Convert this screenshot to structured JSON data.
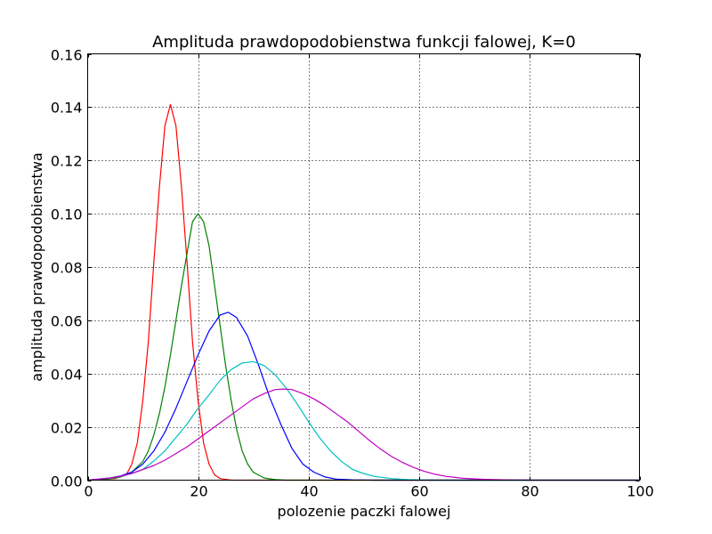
{
  "chart_data": {
    "type": "line",
    "title": "Amplituda prawdopodobienstwa funkcji falowej, K=0",
    "xlabel": "polozenie paczki falowej",
    "ylabel": "amplituda prawdopodobienstwa",
    "xlim": [
      0,
      100
    ],
    "ylim": [
      0,
      0.16
    ],
    "grid": true,
    "x_ticks": [
      0,
      20,
      40,
      60,
      80,
      100
    ],
    "x_tick_labels": [
      "0",
      "20",
      "40",
      "60",
      "80",
      "100"
    ],
    "y_ticks": [
      0,
      0.02,
      0.04,
      0.06,
      0.08,
      0.1,
      0.12,
      0.14,
      0.16
    ],
    "y_tick_labels": [
      "0.00",
      "0.02",
      "0.04",
      "0.06",
      "0.08",
      "0.10",
      "0.12",
      "0.14",
      "0.16"
    ],
    "series": [
      {
        "color": "#ff0000",
        "points": [
          [
            0,
            0
          ],
          [
            5,
            0.0006
          ],
          [
            7,
            0.002
          ],
          [
            8,
            0.006
          ],
          [
            9,
            0.014
          ],
          [
            10,
            0.03
          ],
          [
            11,
            0.052
          ],
          [
            12,
            0.082
          ],
          [
            13,
            0.11
          ],
          [
            14,
            0.133
          ],
          [
            15,
            0.141
          ],
          [
            16,
            0.133
          ],
          [
            17,
            0.11
          ],
          [
            18,
            0.082
          ],
          [
            19,
            0.052
          ],
          [
            20,
            0.03
          ],
          [
            21,
            0.014
          ],
          [
            22,
            0.006
          ],
          [
            23,
            0.002
          ],
          [
            24,
            0.0006
          ],
          [
            26,
            0
          ],
          [
            100,
            0
          ]
        ]
      },
      {
        "color": "#008000",
        "points": [
          [
            0,
            0
          ],
          [
            4,
            0.0005
          ],
          [
            6,
            0.0012
          ],
          [
            8,
            0.003
          ],
          [
            10,
            0.007
          ],
          [
            11,
            0.011
          ],
          [
            12,
            0.017
          ],
          [
            13,
            0.025
          ],
          [
            14,
            0.035
          ],
          [
            15,
            0.047
          ],
          [
            16,
            0.06
          ],
          [
            17,
            0.073
          ],
          [
            18,
            0.085
          ],
          [
            19,
            0.097
          ],
          [
            20,
            0.1
          ],
          [
            21,
            0.097
          ],
          [
            22,
            0.088
          ],
          [
            23,
            0.073
          ],
          [
            24,
            0.058
          ],
          [
            25,
            0.043
          ],
          [
            26,
            0.03
          ],
          [
            27,
            0.019
          ],
          [
            28,
            0.011
          ],
          [
            29,
            0.006
          ],
          [
            30,
            0.003
          ],
          [
            32,
            0.0008
          ],
          [
            34,
            0.0002
          ],
          [
            36,
            0
          ],
          [
            100,
            0
          ]
        ]
      },
      {
        "color": "#0000ff",
        "points": [
          [
            0,
            0
          ],
          [
            4,
            0.0008
          ],
          [
            6,
            0.0016
          ],
          [
            8,
            0.003
          ],
          [
            10,
            0.006
          ],
          [
            12,
            0.011
          ],
          [
            14,
            0.018
          ],
          [
            16,
            0.027
          ],
          [
            18,
            0.037
          ],
          [
            20,
            0.047
          ],
          [
            22,
            0.056
          ],
          [
            24,
            0.062
          ],
          [
            25.5,
            0.063
          ],
          [
            27,
            0.061
          ],
          [
            29,
            0.054
          ],
          [
            31,
            0.043
          ],
          [
            33,
            0.031
          ],
          [
            35,
            0.021
          ],
          [
            37,
            0.012
          ],
          [
            39,
            0.006
          ],
          [
            41,
            0.003
          ],
          [
            43,
            0.0012
          ],
          [
            45,
            0.0004
          ],
          [
            48,
            0.0001
          ],
          [
            52,
            0
          ],
          [
            100,
            0
          ]
        ]
      },
      {
        "color": "#00bfbf",
        "points": [
          [
            0,
            0
          ],
          [
            4,
            0.0008
          ],
          [
            6,
            0.0014
          ],
          [
            8,
            0.0025
          ],
          [
            10,
            0.004
          ],
          [
            12,
            0.0072
          ],
          [
            14,
            0.011
          ],
          [
            16,
            0.016
          ],
          [
            18,
            0.021
          ],
          [
            20,
            0.027
          ],
          [
            22,
            0.032
          ],
          [
            24,
            0.0375
          ],
          [
            26,
            0.0415
          ],
          [
            28,
            0.044
          ],
          [
            30,
            0.0445
          ],
          [
            32,
            0.043
          ],
          [
            34,
            0.0395
          ],
          [
            36,
            0.0345
          ],
          [
            38,
            0.0285
          ],
          [
            40,
            0.022
          ],
          [
            42,
            0.016
          ],
          [
            44,
            0.011
          ],
          [
            46,
            0.007
          ],
          [
            48,
            0.004
          ],
          [
            50,
            0.0025
          ],
          [
            52,
            0.0014
          ],
          [
            55,
            0.0006
          ],
          [
            58,
            0.0002
          ],
          [
            62,
            0
          ],
          [
            100,
            0
          ]
        ]
      },
      {
        "color": "#bf00bf",
        "points": [
          [
            0,
            0
          ],
          [
            4,
            0.0008
          ],
          [
            6,
            0.0015
          ],
          [
            8,
            0.0025
          ],
          [
            10,
            0.004
          ],
          [
            12,
            0.0055
          ],
          [
            14,
            0.0075
          ],
          [
            16,
            0.01
          ],
          [
            18,
            0.0125
          ],
          [
            20,
            0.0155
          ],
          [
            22,
            0.0185
          ],
          [
            24,
            0.0215
          ],
          [
            26,
            0.0245
          ],
          [
            28,
            0.0275
          ],
          [
            30,
            0.0305
          ],
          [
            32,
            0.0325
          ],
          [
            34,
            0.034
          ],
          [
            35.5,
            0.0342
          ],
          [
            37,
            0.034
          ],
          [
            39,
            0.0325
          ],
          [
            41,
            0.0305
          ],
          [
            43,
            0.028
          ],
          [
            45,
            0.025
          ],
          [
            47,
            0.022
          ],
          [
            49,
            0.0185
          ],
          [
            51,
            0.015
          ],
          [
            53,
            0.0118
          ],
          [
            55,
            0.009
          ],
          [
            57,
            0.0067
          ],
          [
            59,
            0.0048
          ],
          [
            61,
            0.0033
          ],
          [
            63,
            0.0022
          ],
          [
            65,
            0.0014
          ],
          [
            68,
            0.0007
          ],
          [
            72,
            0.0003
          ],
          [
            76,
            0.0001
          ],
          [
            80,
            0
          ],
          [
            100,
            0
          ]
        ]
      }
    ]
  }
}
